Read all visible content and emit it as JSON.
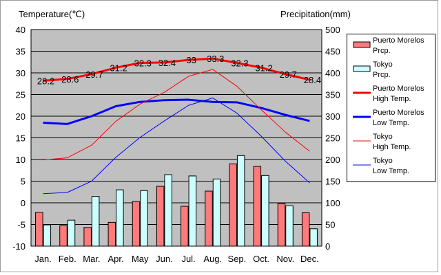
{
  "chart_data": {
    "type": "bar+line",
    "left_axis_title": "Temperature(℃)",
    "right_axis_title": "Precipitation(mm)",
    "categories": [
      "Jan.",
      "Feb.",
      "Mar.",
      "Apr.",
      "May",
      "Jun.",
      "Jul.",
      "Aug.",
      "Sep.",
      "Oct.",
      "Nov.",
      "Dec."
    ],
    "left_axis": {
      "min": -10,
      "max": 40,
      "step": 5
    },
    "right_axis": {
      "min": 0,
      "max": 500,
      "step": 50
    },
    "bar_series": [
      {
        "name": "Puerto Morelos Prcp.",
        "color": "#ff7a7a",
        "values": [
          78,
          47,
          43,
          55,
          103,
          138,
          92,
          127,
          190,
          184,
          98,
          77
        ]
      },
      {
        "name": "Tokyo Prcp.",
        "color": "#ccffff",
        "values": [
          49,
          60,
          115,
          130,
          128,
          165,
          162,
          155,
          209,
          163,
          93,
          40
        ]
      }
    ],
    "line_series": [
      {
        "name": "Puerto Morelos High Temp.",
        "color": "#ff0000",
        "width": 3,
        "values": [
          28.2,
          28.6,
          29.7,
          31.2,
          32.3,
          32.4,
          33,
          33.3,
          32.3,
          31.2,
          29.7,
          28.4
        ],
        "labels": [
          "28.2",
          "28.6",
          "29.7",
          "31.2",
          "32.3",
          "32.4",
          "33",
          "33.3",
          "32.3",
          "31.2",
          "29.7",
          "28.4"
        ]
      },
      {
        "name": "Puerto Morelos Low Temp.",
        "color": "#0000ff",
        "width": 3,
        "values": [
          18.5,
          18.2,
          20.0,
          22.3,
          23.3,
          23.7,
          23.8,
          23.3,
          23.2,
          21.9,
          20.3,
          18.9
        ]
      },
      {
        "name": "Tokyo High Temp.",
        "color": "#ff0000",
        "width": 1,
        "values": [
          9.9,
          10.4,
          13.3,
          18.8,
          22.8,
          25.5,
          29.2,
          30.8,
          26.9,
          21.5,
          16.3,
          11.9
        ]
      },
      {
        "name": "Tokyo Low Temp.",
        "color": "#0000ff",
        "width": 1,
        "values": [
          2.1,
          2.4,
          5.0,
          10.5,
          15.1,
          18.9,
          22.5,
          24.2,
          20.7,
          15.4,
          9.6,
          4.6
        ]
      }
    ],
    "plot_background": "#c0c0c0",
    "grid": true,
    "legend_position": "right"
  },
  "legend": {
    "items": [
      {
        "type": "bar",
        "color": "#ff7a7a",
        "line1": "Puerto Morelos",
        "line2": "Prcp."
      },
      {
        "type": "bar",
        "color": "#ccffff",
        "line1": "Tokyo",
        "line2": "Prcp."
      },
      {
        "type": "line",
        "color": "#ff0000",
        "width": 3,
        "line1": "Puerto Morelos",
        "line2": "High Temp."
      },
      {
        "type": "line",
        "color": "#0000ff",
        "width": 3,
        "line1": "Puerto Morelos",
        "line2": "Low Temp."
      },
      {
        "type": "line",
        "color": "#ff0000",
        "width": 1,
        "line1": "Tokyo",
        "line2": "High Temp."
      },
      {
        "type": "line",
        "color": "#0000ff",
        "width": 1,
        "line1": "Tokyo",
        "line2": "Low Temp."
      }
    ]
  }
}
